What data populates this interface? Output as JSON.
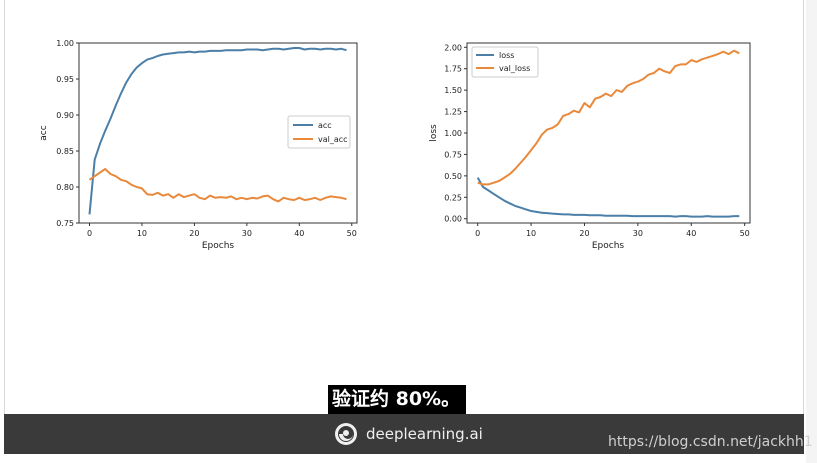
{
  "caption": "验证约 80%。",
  "brand": {
    "name": "deeplearning.ai"
  },
  "watermark": "https://blog.csdn.net/jackhh1",
  "colors": {
    "blue": "#4c7fa8",
    "orange": "#e8893b"
  },
  "chart_data": [
    {
      "type": "line",
      "xlabel": "Epochs",
      "ylabel": "acc",
      "xlim": [
        -2,
        51
      ],
      "ylim": [
        0.75,
        1.0
      ],
      "xticks": [
        "0",
        "10",
        "20",
        "30",
        "40",
        "50"
      ],
      "yticks": [
        "0.75",
        "0.80",
        "0.85",
        "0.90",
        "0.95",
        "1.00"
      ],
      "legend_position": "center-right",
      "series": [
        {
          "name": "acc",
          "color": "#4c7fa8",
          "x": [
            0,
            1,
            2,
            3,
            4,
            5,
            6,
            7,
            8,
            9,
            10,
            11,
            12,
            13,
            14,
            15,
            16,
            17,
            18,
            19,
            20,
            21,
            22,
            23,
            24,
            25,
            26,
            27,
            28,
            29,
            30,
            31,
            32,
            33,
            34,
            35,
            36,
            37,
            38,
            39,
            40,
            41,
            42,
            43,
            44,
            45,
            46,
            47,
            48,
            49
          ],
          "values": [
            0.762,
            0.838,
            0.86,
            0.878,
            0.895,
            0.913,
            0.93,
            0.945,
            0.957,
            0.966,
            0.972,
            0.977,
            0.979,
            0.982,
            0.984,
            0.985,
            0.986,
            0.987,
            0.987,
            0.988,
            0.987,
            0.988,
            0.988,
            0.989,
            0.989,
            0.989,
            0.99,
            0.99,
            0.99,
            0.99,
            0.991,
            0.991,
            0.991,
            0.99,
            0.991,
            0.992,
            0.992,
            0.991,
            0.992,
            0.993,
            0.993,
            0.991,
            0.992,
            0.992,
            0.991,
            0.992,
            0.992,
            0.991,
            0.992,
            0.99
          ]
        },
        {
          "name": "val_acc",
          "color": "#e8893b",
          "x": [
            0,
            1,
            2,
            3,
            4,
            5,
            6,
            7,
            8,
            9,
            10,
            11,
            12,
            13,
            14,
            15,
            16,
            17,
            18,
            19,
            20,
            21,
            22,
            23,
            24,
            25,
            26,
            27,
            28,
            29,
            30,
            31,
            32,
            33,
            34,
            35,
            36,
            37,
            38,
            39,
            40,
            41,
            42,
            43,
            44,
            45,
            46,
            47,
            48,
            49
          ],
          "values": [
            0.81,
            0.815,
            0.82,
            0.825,
            0.818,
            0.815,
            0.81,
            0.808,
            0.803,
            0.8,
            0.798,
            0.79,
            0.789,
            0.792,
            0.788,
            0.79,
            0.785,
            0.79,
            0.786,
            0.788,
            0.79,
            0.785,
            0.783,
            0.788,
            0.785,
            0.786,
            0.785,
            0.787,
            0.783,
            0.785,
            0.783,
            0.785,
            0.784,
            0.787,
            0.788,
            0.783,
            0.78,
            0.785,
            0.783,
            0.782,
            0.785,
            0.782,
            0.783,
            0.785,
            0.782,
            0.785,
            0.787,
            0.786,
            0.785,
            0.783
          ]
        }
      ]
    },
    {
      "type": "line",
      "xlabel": "Epochs",
      "ylabel": "loss",
      "xlim": [
        -2,
        51
      ],
      "ylim": [
        -0.05,
        2.05
      ],
      "xticks": [
        "0",
        "10",
        "20",
        "30",
        "40",
        "50"
      ],
      "yticks": [
        "0.00",
        "0.25",
        "0.50",
        "0.75",
        "1.00",
        "1.25",
        "1.50",
        "1.75",
        "2.00"
      ],
      "legend_position": "top-left",
      "series": [
        {
          "name": "loss",
          "color": "#4c7fa8",
          "x": [
            0,
            1,
            2,
            3,
            4,
            5,
            6,
            7,
            8,
            9,
            10,
            11,
            12,
            13,
            14,
            15,
            16,
            17,
            18,
            19,
            20,
            21,
            22,
            23,
            24,
            25,
            26,
            27,
            28,
            29,
            30,
            31,
            32,
            33,
            34,
            35,
            36,
            37,
            38,
            39,
            40,
            41,
            42,
            43,
            44,
            45,
            46,
            47,
            48,
            49
          ],
          "values": [
            0.48,
            0.37,
            0.33,
            0.29,
            0.25,
            0.21,
            0.18,
            0.15,
            0.13,
            0.11,
            0.09,
            0.08,
            0.07,
            0.065,
            0.06,
            0.055,
            0.05,
            0.05,
            0.045,
            0.045,
            0.045,
            0.04,
            0.04,
            0.04,
            0.035,
            0.035,
            0.035,
            0.035,
            0.035,
            0.03,
            0.03,
            0.03,
            0.03,
            0.03,
            0.03,
            0.03,
            0.03,
            0.025,
            0.03,
            0.03,
            0.025,
            0.025,
            0.025,
            0.03,
            0.025,
            0.025,
            0.025,
            0.025,
            0.03,
            0.03
          ]
        },
        {
          "name": "val_loss",
          "color": "#e8893b",
          "x": [
            0,
            1,
            2,
            3,
            4,
            5,
            6,
            7,
            8,
            9,
            10,
            11,
            12,
            13,
            14,
            15,
            16,
            17,
            18,
            19,
            20,
            21,
            22,
            23,
            24,
            25,
            26,
            27,
            28,
            29,
            30,
            31,
            32,
            33,
            34,
            35,
            36,
            37,
            38,
            39,
            40,
            41,
            42,
            43,
            44,
            45,
            46,
            47,
            48,
            49
          ],
          "values": [
            0.42,
            0.4,
            0.4,
            0.42,
            0.44,
            0.48,
            0.52,
            0.58,
            0.65,
            0.72,
            0.8,
            0.88,
            0.98,
            1.04,
            1.06,
            1.1,
            1.2,
            1.22,
            1.26,
            1.24,
            1.35,
            1.3,
            1.4,
            1.42,
            1.46,
            1.43,
            1.5,
            1.48,
            1.55,
            1.58,
            1.6,
            1.63,
            1.68,
            1.7,
            1.75,
            1.72,
            1.7,
            1.78,
            1.8,
            1.8,
            1.85,
            1.83,
            1.86,
            1.88,
            1.9,
            1.92,
            1.95,
            1.92,
            1.96,
            1.93
          ]
        }
      ]
    }
  ]
}
